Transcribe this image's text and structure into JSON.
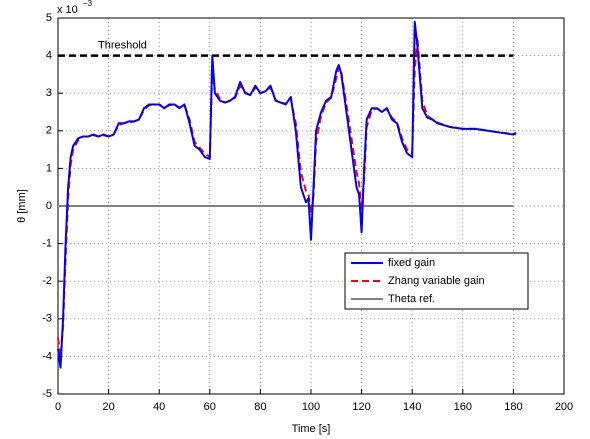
{
  "chart_data": {
    "type": "line",
    "xlabel": "Time [s]",
    "ylabel": "θ [mm]",
    "y_multiplier": "x 10",
    "y_multiplier_exponent": "−3",
    "xlim": [
      0,
      200
    ],
    "xticks": [
      0,
      20,
      40,
      60,
      80,
      100,
      120,
      140,
      160,
      180,
      200
    ],
    "ylim": [
      -5,
      5
    ],
    "yticks": [
      -5,
      -4,
      -3,
      -2,
      -1,
      0,
      1,
      2,
      3,
      4,
      5
    ],
    "grid": true,
    "legend": "lower right",
    "threshold": {
      "label": "Threshold",
      "value": 4,
      "x": [
        0,
        180
      ],
      "color": "#000000"
    },
    "series": [
      {
        "name": "fixed gain",
        "color": "#0000ff",
        "dash": false,
        "x": [
          0,
          1,
          2,
          3,
          4,
          5,
          6,
          8,
          10,
          12,
          14,
          16,
          18,
          20,
          22,
          24,
          26,
          28,
          30,
          32,
          34,
          36,
          38,
          40,
          42,
          44,
          46,
          48,
          50,
          52,
          54,
          56,
          58,
          60,
          61,
          62,
          64,
          66,
          68,
          70,
          72,
          74,
          76,
          78,
          80,
          82,
          84,
          86,
          88,
          90,
          92,
          94,
          96,
          98,
          99,
          100,
          101,
          102,
          104,
          106,
          108,
          110,
          111,
          112,
          114,
          116,
          118,
          119,
          120,
          121,
          122,
          124,
          126,
          128,
          130,
          132,
          134,
          136,
          138,
          140,
          141,
          142,
          144,
          146,
          148,
          150,
          155,
          160,
          165,
          170,
          175,
          180,
          181
        ],
        "values": [
          -3.8,
          -4.3,
          -3,
          -1,
          0.5,
          1.3,
          1.6,
          1.8,
          1.85,
          1.85,
          1.9,
          1.85,
          1.9,
          1.85,
          1.9,
          2.2,
          2.2,
          2.25,
          2.25,
          2.3,
          2.6,
          2.7,
          2.7,
          2.7,
          2.6,
          2.7,
          2.7,
          2.6,
          2.7,
          2.2,
          1.6,
          1.5,
          1.3,
          1.25,
          4.0,
          3.0,
          2.8,
          2.75,
          2.8,
          2.9,
          3.3,
          3.0,
          2.95,
          3.2,
          3.0,
          3.05,
          3.2,
          2.8,
          2.75,
          2.7,
          2.9,
          2.0,
          0.5,
          0.1,
          0.2,
          -0.9,
          0.5,
          2.0,
          2.5,
          2.8,
          2.9,
          3.6,
          3.75,
          3.5,
          2.5,
          1.5,
          0.5,
          0.3,
          -0.7,
          1.0,
          2.3,
          2.6,
          2.6,
          2.5,
          2.6,
          2.3,
          2.2,
          1.7,
          1.4,
          1.3,
          4.9,
          4.3,
          2.6,
          2.35,
          2.3,
          2.2,
          2.1,
          2.05,
          2.05,
          2.0,
          1.95,
          1.9,
          1.95
        ]
      },
      {
        "name": "Zhang variable gain",
        "color": "#ff0000",
        "dash": true,
        "x": [
          0,
          1,
          2,
          3,
          4,
          5,
          6,
          8,
          10,
          12,
          14,
          16,
          18,
          20,
          22,
          24,
          26,
          28,
          30,
          32,
          34,
          36,
          38,
          40,
          42,
          44,
          46,
          48,
          50,
          52,
          54,
          56,
          58,
          60,
          61,
          62,
          64,
          66,
          68,
          70,
          72,
          74,
          76,
          78,
          80,
          82,
          84,
          86,
          88,
          90,
          92,
          94,
          96,
          98,
          99,
          100,
          101,
          102,
          104,
          106,
          108,
          110,
          111,
          112,
          114,
          116,
          118,
          119,
          120,
          121,
          122,
          124,
          126,
          128,
          130,
          132,
          134,
          136,
          138,
          140,
          141,
          142,
          144,
          146,
          148,
          150,
          155,
          160,
          165,
          170,
          175,
          180,
          181
        ],
        "values": [
          -3.5,
          -4.0,
          -3.2,
          -1.4,
          0.2,
          1.1,
          1.5,
          1.75,
          1.85,
          1.85,
          1.88,
          1.85,
          1.88,
          1.85,
          1.9,
          2.15,
          2.2,
          2.22,
          2.25,
          2.3,
          2.55,
          2.68,
          2.7,
          2.7,
          2.62,
          2.68,
          2.7,
          2.62,
          2.68,
          2.3,
          1.7,
          1.55,
          1.4,
          1.3,
          3.7,
          3.1,
          2.85,
          2.75,
          2.8,
          2.88,
          3.2,
          3.02,
          2.95,
          3.15,
          3.0,
          3.05,
          3.15,
          2.82,
          2.75,
          2.72,
          2.85,
          2.2,
          0.9,
          0.4,
          0.3,
          -0.2,
          0.3,
          1.7,
          2.4,
          2.75,
          2.88,
          3.4,
          3.7,
          3.55,
          2.7,
          1.8,
          0.9,
          0.6,
          -0.1,
          0.7,
          2.1,
          2.55,
          2.6,
          2.52,
          2.58,
          2.35,
          2.22,
          1.8,
          1.5,
          1.4,
          3.6,
          4.5,
          2.8,
          2.4,
          2.3,
          2.22,
          2.1,
          2.05,
          2.05,
          2.0,
          1.95,
          1.92,
          1.9
        ]
      },
      {
        "name": "Theta ref.",
        "color": "#808080",
        "dash": false,
        "x": [
          0,
          180
        ],
        "values": [
          0,
          0
        ]
      }
    ]
  }
}
